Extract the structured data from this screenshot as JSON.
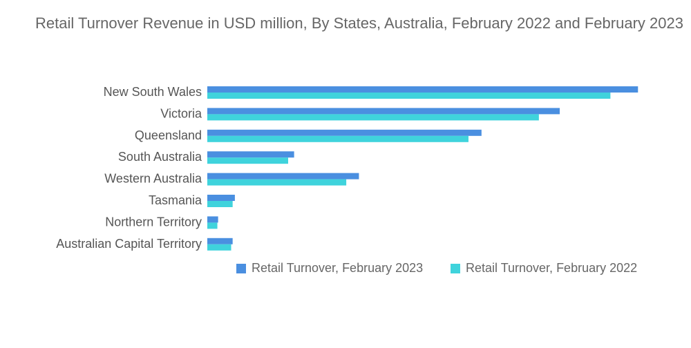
{
  "chart_data": {
    "type": "bar",
    "orientation": "horizontal",
    "title": "Retail Turnover Revenue in USD million, By States, Australia, February 2022 and February 2023",
    "categories": [
      "New South Wales",
      "Victoria",
      "Queensland",
      "South Australia",
      "Western Australia",
      "Tasmania",
      "Northern Territory",
      "Australian Capital Territory"
    ],
    "series": [
      {
        "name": "Retail Turnover, February 2023",
        "color": "#4a8fe0",
        "values": [
          11560,
          9460,
          7360,
          2330,
          4070,
          740,
          290,
          680
        ]
      },
      {
        "name": "Retail Turnover, February 2022",
        "color": "#3fd3dc",
        "values": [
          10820,
          8900,
          7010,
          2170,
          3730,
          680,
          270,
          640
        ]
      }
    ],
    "xlim": [
      0,
      12000
    ],
    "xlabel": "",
    "ylabel": "",
    "grid": false,
    "legend_position": "bottom"
  }
}
